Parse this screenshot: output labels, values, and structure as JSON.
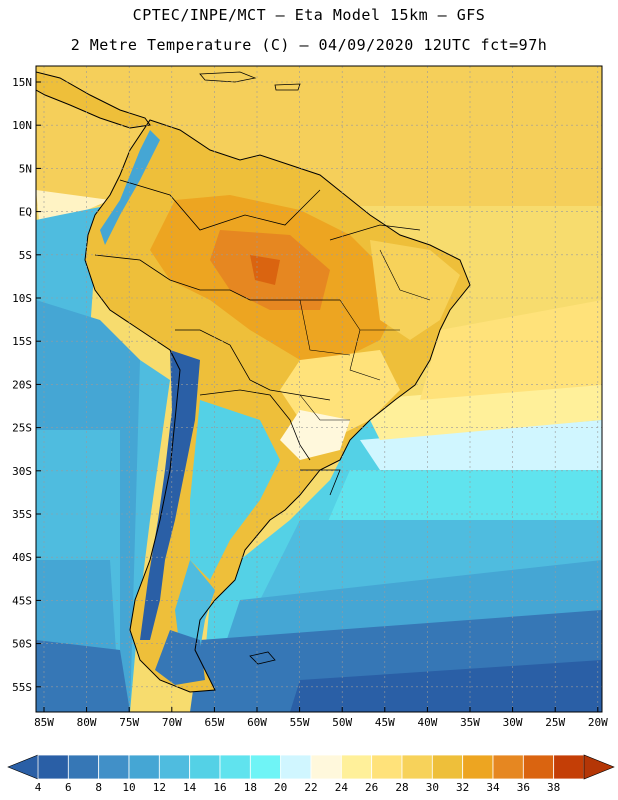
{
  "title": {
    "line1": "CPTEC/INPE/MCT –  Eta Model 15km – GFS",
    "line2": "2 Metre Temperature (C) – 04/09/2020 12UTC fct=97h"
  },
  "map": {
    "latitude_labels": [
      "15N",
      "10N",
      "5N",
      "EQ",
      "5S",
      "10S",
      "15S",
      "20S",
      "25S",
      "30S",
      "35S",
      "40S",
      "45S",
      "50S",
      "55S"
    ],
    "longitude_labels": [
      "85W",
      "80W",
      "75W",
      "70W",
      "65W",
      "60W",
      "55W",
      "50W",
      "45W",
      "40W",
      "35W",
      "30W",
      "25W",
      "20W"
    ],
    "ocean_color": "#3b78b8",
    "land_features": [
      "South America",
      "Central America",
      "Caribbean islands",
      "Falkland Islands"
    ]
  },
  "colorbar": {
    "tick_labels": [
      "4",
      "6",
      "8",
      "10",
      "12",
      "14",
      "16",
      "18",
      "20",
      "22",
      "24",
      "26",
      "28",
      "30",
      "32",
      "34",
      "36",
      "38"
    ],
    "colors": [
      "#2a5fa6",
      "#3677b6",
      "#4190c8",
      "#45a6d4",
      "#4fbcdf",
      "#54d1e6",
      "#60e3ee",
      "#6ff4f6",
      "#d0f6ff",
      "#fff8dc",
      "#fff09a",
      "#ffe27a",
      "#f7d25a",
      "#eebf3a",
      "#eda521",
      "#e68721",
      "#da6410",
      "#c43e06"
    ],
    "low_arrow_color": "#2a5fa6",
    "high_arrow_color": "#b43606"
  }
}
